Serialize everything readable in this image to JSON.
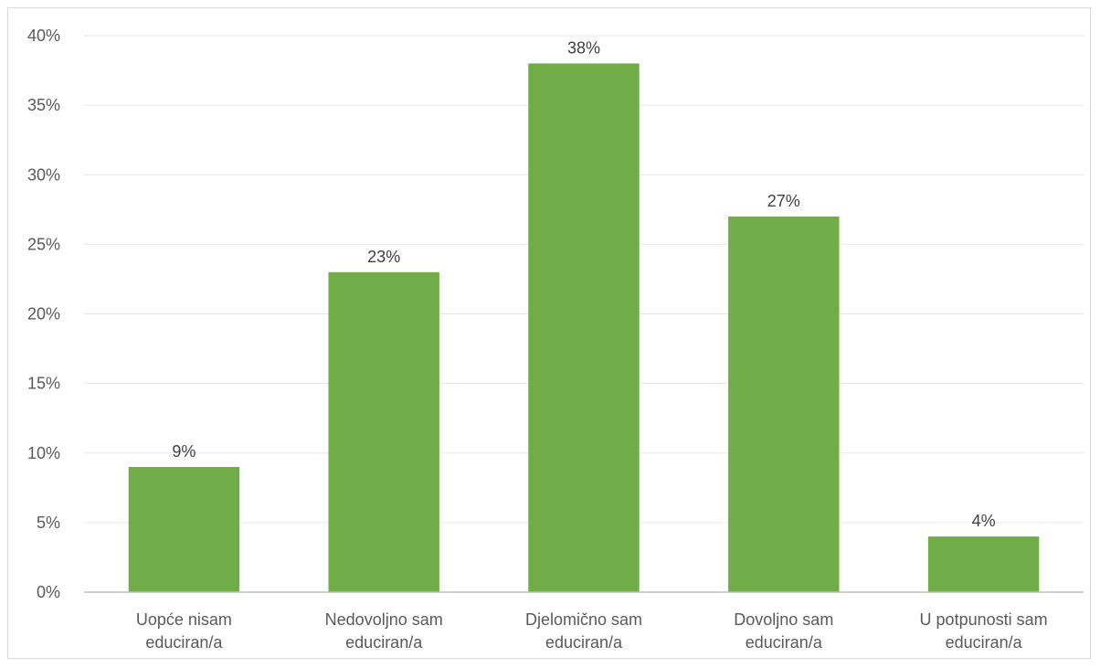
{
  "chart_data": {
    "type": "bar",
    "categories": [
      [
        "Uopće nisam",
        "educiran/a"
      ],
      [
        "Nedovoljno sam",
        "educiran/a"
      ],
      [
        "Djelomično sam",
        "educiran/a"
      ],
      [
        "Dovoljno sam",
        "educiran/a"
      ],
      [
        "U potpunosti sam",
        "educiran/a"
      ]
    ],
    "values": [
      9,
      23,
      38,
      27,
      4
    ],
    "data_labels": [
      "9%",
      "23%",
      "38%",
      "27%",
      "4%"
    ],
    "ylim": [
      0,
      40
    ],
    "yticks": [
      0,
      5,
      10,
      15,
      20,
      25,
      30,
      35,
      40
    ],
    "ytick_labels": [
      "0%",
      "5%",
      "10%",
      "15%",
      "20%",
      "25%",
      "30%",
      "35%",
      "40%"
    ],
    "grid": true,
    "legend": "none",
    "colors": {
      "bar": "#70ad47",
      "grid": "#e6e6e6",
      "axis": "#bfbfbf"
    }
  }
}
